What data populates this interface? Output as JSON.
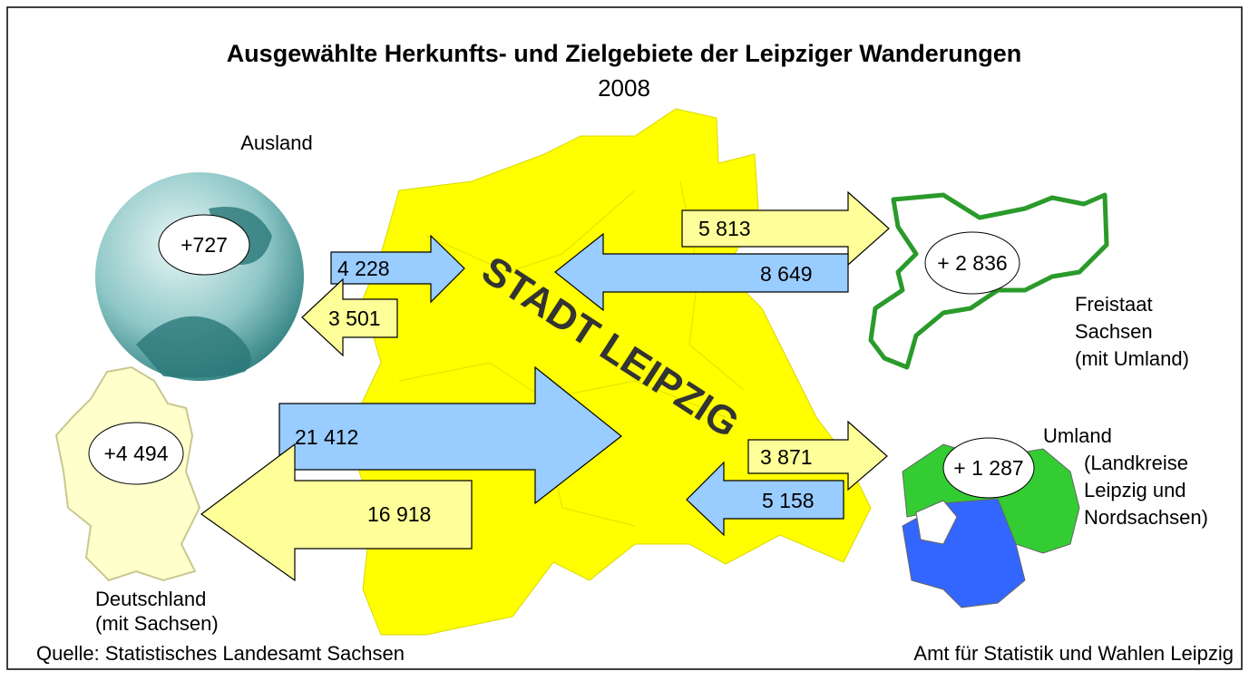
{
  "title": "Ausgewählte Herkunfts- und Zielgebiete der Leipziger Wanderungen",
  "subtitle": "2008",
  "center_label": "STADT LEIPZIG",
  "regions": [
    {
      "label": [
        "Ausland"
      ],
      "balance": "+727",
      "in": "4 228",
      "out": "3 501"
    },
    {
      "label": [
        "Freistaat",
        "Sachsen",
        "(mit Umland)"
      ],
      "balance": "+ 2 836",
      "in": "8 649",
      "out": "5 813"
    },
    {
      "label": [
        "Deutschland",
        "(mit Sachsen)"
      ],
      "balance": "+4 494",
      "in": "21 412",
      "out": "16 918"
    },
    {
      "label": [
        "Umland",
        "(Landkreise",
        "Leipzig und",
        "Nordsachsen)"
      ],
      "balance": "+ 1 287",
      "in": "5 158",
      "out": "3 871"
    }
  ],
  "footer": {
    "source": "Quelle: Statistisches Landesamt Sachsen",
    "publisher": "Amt für Statistik und Wahlen Leipzig"
  }
}
